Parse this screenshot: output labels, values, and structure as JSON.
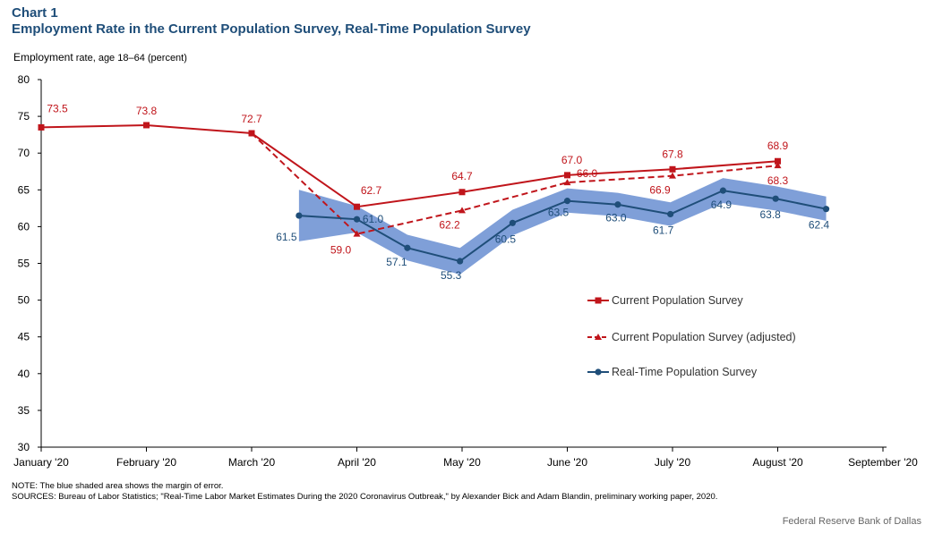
{
  "header": {
    "chart_label": "Chart 1",
    "title": "Employment Rate in the Current Population Survey, Real-Time Population Survey",
    "y_title_main": "Employment",
    "y_title_rest": " rate, age 18–64 (percent)"
  },
  "footer": {
    "note": "NOTE: The blue shaded area shows the margin of error.",
    "sources": "SOURCES: Bureau of Labor Statistics; \"Real-Time Labor Market Estimates During the 2020 Coronavirus Outbreak,\" by Alexander Bick and Adam Blandin, preliminary working paper, 2020.",
    "credit": "Federal Reserve Bank of Dallas"
  },
  "colors": {
    "cps": "#c0151b",
    "rps": "#1f4e79",
    "band": "#7f9fd8",
    "title": "#1f4e79"
  },
  "chart_data": {
    "type": "line",
    "ylim": [
      30,
      80
    ],
    "yticks": [
      30,
      35,
      40,
      45,
      50,
      55,
      60,
      65,
      70,
      75,
      80
    ],
    "xlim": [
      0,
      8.15
    ],
    "xticks": [
      {
        "x": 0,
        "label": "January '20"
      },
      {
        "x": 1,
        "label": "February '20"
      },
      {
        "x": 2,
        "label": "March '20"
      },
      {
        "x": 3,
        "label": "April '20"
      },
      {
        "x": 4,
        "label": "May '20"
      },
      {
        "x": 5,
        "label": "June '20"
      },
      {
        "x": 6,
        "label": "July '20"
      },
      {
        "x": 7,
        "label": "August '20"
      },
      {
        "x": 8,
        "label": "September '20"
      }
    ],
    "legend_position": "lower-right",
    "series": [
      {
        "name": "Current Population Survey",
        "style": "solid-square",
        "points": [
          {
            "x": 0,
            "y": 73.5,
            "label": "73.5"
          },
          {
            "x": 1,
            "y": 73.8,
            "label": "73.8"
          },
          {
            "x": 2,
            "y": 72.7,
            "label": "72.7"
          },
          {
            "x": 3,
            "y": 62.7,
            "label": "62.7"
          },
          {
            "x": 4,
            "y": 64.7,
            "label": "64.7"
          },
          {
            "x": 5,
            "y": 67.0,
            "label": "67.0"
          },
          {
            "x": 6,
            "y": 67.8,
            "label": "67.8"
          },
          {
            "x": 7,
            "y": 68.9,
            "label": "68.9"
          }
        ]
      },
      {
        "name": "Current Population Survey (adjusted)",
        "style": "dashed-triangle",
        "points": [
          {
            "x": 2,
            "y": 72.7,
            "label": ""
          },
          {
            "x": 3,
            "y": 59.0,
            "label": "59.0"
          },
          {
            "x": 4,
            "y": 62.2,
            "label": "62.2"
          },
          {
            "x": 5,
            "y": 66.0,
            "label": "66.0"
          },
          {
            "x": 6,
            "y": 66.9,
            "label": "66.9"
          },
          {
            "x": 7,
            "y": 68.3,
            "label": "68.3"
          }
        ]
      },
      {
        "name": "Real-Time Population Survey",
        "style": "solid-circle",
        "points": [
          {
            "x": 2.45,
            "y": 61.5,
            "label": "61.5",
            "lo": 58.0,
            "hi": 65.0
          },
          {
            "x": 3.0,
            "y": 61.0,
            "label": "61.0",
            "lo": 59.2,
            "hi": 62.8
          },
          {
            "x": 3.48,
            "y": 57.1,
            "label": "57.1",
            "lo": 55.4,
            "hi": 58.9
          },
          {
            "x": 3.98,
            "y": 55.3,
            "label": "55.3",
            "lo": 53.5,
            "hi": 57.1
          },
          {
            "x": 4.48,
            "y": 60.5,
            "label": "60.5",
            "lo": 58.8,
            "hi": 62.3
          },
          {
            "x": 5.0,
            "y": 63.5,
            "label": "63.5",
            "lo": 61.9,
            "hi": 65.2
          },
          {
            "x": 5.48,
            "y": 63.0,
            "label": "63.0",
            "lo": 61.4,
            "hi": 64.6
          },
          {
            "x": 5.98,
            "y": 61.7,
            "label": "61.7",
            "lo": 60.1,
            "hi": 63.3
          },
          {
            "x": 6.48,
            "y": 64.9,
            "label": "64.9",
            "lo": 63.2,
            "hi": 66.6
          },
          {
            "x": 6.98,
            "y": 63.8,
            "label": "63.8",
            "lo": 62.2,
            "hi": 65.5
          },
          {
            "x": 7.46,
            "y": 62.4,
            "label": "62.4",
            "lo": 60.8,
            "hi": 64.1
          }
        ]
      }
    ]
  }
}
